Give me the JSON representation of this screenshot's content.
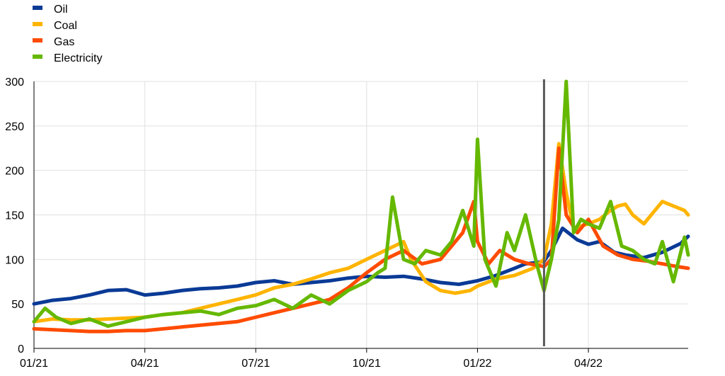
{
  "chart_data": {
    "type": "line",
    "title": "",
    "xlabel": "",
    "ylabel": "",
    "ylim": [
      0,
      300
    ],
    "yticks": [
      0,
      50,
      100,
      150,
      200,
      250,
      300
    ],
    "x_tick_labels": [
      "01/21",
      "04/21",
      "07/21",
      "10/21",
      "01/22",
      "04/22"
    ],
    "x_unit": "month index from 01/21",
    "xlim": [
      0,
      17.7
    ],
    "grid": true,
    "legend_position": "top-left",
    "vertical_marker": {
      "x": 13.8,
      "label": ""
    },
    "series": [
      {
        "name": "Oil",
        "color": "#0a3a96",
        "x": [
          0,
          0.5,
          1,
          1.5,
          2,
          2.5,
          3,
          3.5,
          4,
          4.5,
          5,
          5.5,
          6,
          6.5,
          7,
          7.5,
          8,
          8.5,
          9,
          9.5,
          10,
          10.5,
          11,
          11.5,
          12,
          12.5,
          13,
          13.3,
          13.7,
          13.8,
          14.0,
          14.3,
          14.7,
          15.0,
          15.3,
          15.7,
          16.0,
          16.5,
          17.0,
          17.5,
          17.7
        ],
        "y": [
          50,
          54,
          56,
          60,
          65,
          66,
          60,
          62,
          65,
          67,
          68,
          70,
          74,
          76,
          72,
          74,
          76,
          79,
          81,
          80,
          81,
          78,
          74,
          72,
          76,
          82,
          90,
          95,
          97,
          98,
          110,
          135,
          122,
          117,
          120,
          108,
          105,
          102,
          108,
          118,
          126
        ]
      },
      {
        "name": "Coal",
        "color": "#ffb400",
        "x": [
          0,
          0.5,
          1,
          1.5,
          2,
          2.5,
          3,
          3.5,
          4,
          4.5,
          5,
          5.5,
          6,
          6.5,
          7,
          7.5,
          8,
          8.5,
          9,
          9.5,
          10,
          10.2,
          10.6,
          11.0,
          11.4,
          11.8,
          12.0,
          12.5,
          13.0,
          13.5,
          13.8,
          14.0,
          14.2,
          14.4,
          14.6,
          15.0,
          15.3,
          15.6,
          15.8,
          16.0,
          16.2,
          16.5,
          16.8,
          17.0,
          17.3,
          17.6,
          17.7
        ],
        "y": [
          30,
          33,
          32,
          32,
          33,
          34,
          35,
          38,
          40,
          45,
          50,
          55,
          60,
          68,
          72,
          78,
          85,
          90,
          100,
          110,
          120,
          100,
          75,
          65,
          62,
          65,
          70,
          78,
          82,
          90,
          100,
          140,
          230,
          175,
          135,
          140,
          145,
          155,
          160,
          162,
          150,
          140,
          155,
          165,
          160,
          155,
          150
        ]
      },
      {
        "name": "Gas",
        "color": "#ff4b00",
        "x": [
          0,
          0.5,
          1,
          1.5,
          2,
          2.5,
          3,
          3.5,
          4,
          4.5,
          5,
          5.5,
          6,
          6.5,
          7,
          7.5,
          8,
          8.5,
          9,
          9.5,
          10,
          10.5,
          11,
          11.3,
          11.6,
          11.9,
          12.0,
          12.3,
          12.6,
          13.0,
          13.4,
          13.8,
          14.0,
          14.2,
          14.4,
          14.7,
          15.0,
          15.4,
          15.8,
          16.2,
          16.6,
          17.0,
          17.4,
          17.7
        ],
        "y": [
          22,
          21,
          20,
          19,
          19,
          20,
          20,
          22,
          24,
          26,
          28,
          30,
          35,
          40,
          45,
          50,
          55,
          68,
          85,
          100,
          110,
          95,
          100,
          115,
          130,
          165,
          120,
          95,
          110,
          100,
          95,
          92,
          100,
          225,
          150,
          130,
          145,
          115,
          105,
          100,
          98,
          95,
          92,
          90
        ]
      },
      {
        "name": "Electricity",
        "color": "#65b800",
        "x": [
          0,
          0.3,
          0.6,
          1.0,
          1.5,
          2,
          2.5,
          3,
          3.5,
          4,
          4.5,
          5,
          5.5,
          6,
          6.5,
          7,
          7.5,
          8,
          8.5,
          9,
          9.3,
          9.5,
          9.7,
          10,
          10.3,
          10.6,
          11.0,
          11.3,
          11.6,
          11.9,
          12.0,
          12.2,
          12.5,
          12.8,
          13.0,
          13.3,
          13.6,
          13.8,
          14.0,
          14.2,
          14.4,
          14.6,
          14.8,
          15.0,
          15.3,
          15.6,
          15.9,
          16.2,
          16.5,
          16.8,
          17.0,
          17.3,
          17.6,
          17.7
        ],
        "y": [
          30,
          45,
          35,
          28,
          33,
          25,
          30,
          35,
          38,
          40,
          42,
          38,
          45,
          48,
          55,
          45,
          60,
          50,
          65,
          75,
          85,
          90,
          170,
          100,
          95,
          110,
          105,
          120,
          155,
          115,
          235,
          100,
          70,
          130,
          110,
          150,
          95,
          65,
          100,
          145,
          300,
          130,
          145,
          140,
          135,
          165,
          115,
          110,
          100,
          95,
          120,
          75,
          125,
          105
        ]
      }
    ]
  },
  "legend": [
    {
      "label": "Oil",
      "color": "#0a3a96"
    },
    {
      "label": "Coal",
      "color": "#ffb400"
    },
    {
      "label": "Gas",
      "color": "#ff4b00"
    },
    {
      "label": "Electricity",
      "color": "#65b800"
    }
  ]
}
